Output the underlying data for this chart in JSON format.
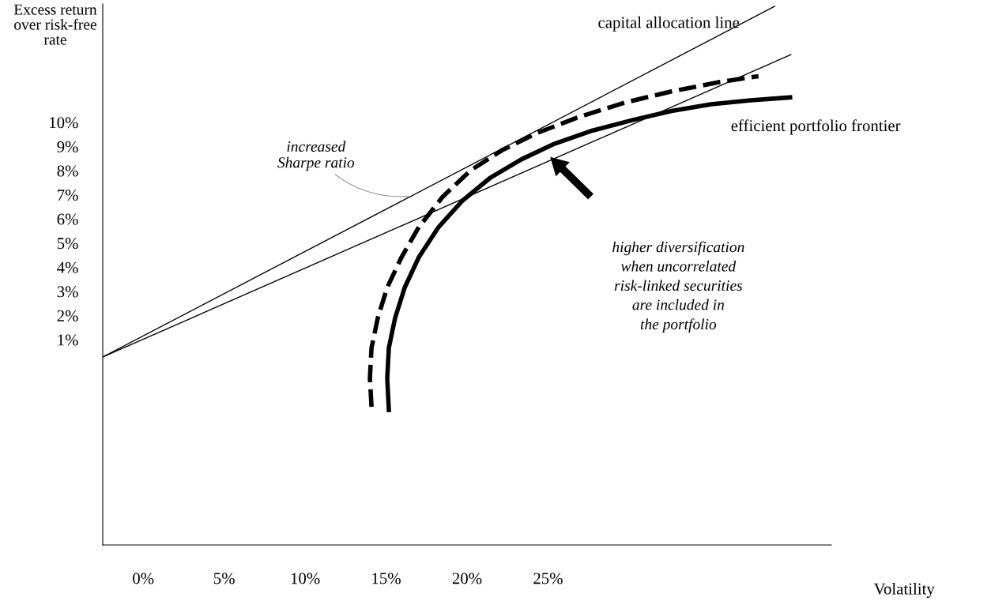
{
  "chart_data": {
    "type": "line",
    "xlabel": "Volatility",
    "ylabel": "Excess return\nover risk-free\nrate",
    "xlim": [
      -2.5,
      42.5
    ],
    "ylim": [
      -7.5,
      14.9
    ],
    "xticks": [
      {
        "value": 0,
        "label": "0%"
      },
      {
        "value": 5,
        "label": "5%"
      },
      {
        "value": 10,
        "label": "10%"
      },
      {
        "value": 15,
        "label": "15%"
      },
      {
        "value": 20,
        "label": "20%"
      },
      {
        "value": 25,
        "label": "25%"
      }
    ],
    "yticks": [
      {
        "value": 1,
        "label": "1%"
      },
      {
        "value": 2,
        "label": "2%"
      },
      {
        "value": 3,
        "label": "3%"
      },
      {
        "value": 4,
        "label": "4%"
      },
      {
        "value": 5,
        "label": "5%"
      },
      {
        "value": 6,
        "label": "6%"
      },
      {
        "value": 7,
        "label": "7%"
      },
      {
        "value": 8,
        "label": "8%"
      },
      {
        "value": 9,
        "label": "9%"
      },
      {
        "value": 10,
        "label": "10%"
      }
    ],
    "grid": false,
    "legend": false,
    "marker": "none",
    "series": [
      {
        "name": "capital allocation line",
        "color": "#000000",
        "line_style": "solid",
        "x": [
          -2.5,
          39.0
        ],
        "values": [
          0.28,
          14.8
        ]
      },
      {
        "color": "#000000",
        "line_style": "solid",
        "x": [
          -2.5,
          40.0
        ],
        "values": [
          0.28,
          12.8
        ]
      },
      {
        "name": "efficient portfolio frontier",
        "color": "#000000",
        "line_style": "solid",
        "x": [
          15.17,
          15.07,
          15.17,
          15.56,
          16.15,
          17.02,
          18.24,
          19.71,
          21.41,
          23.37,
          25.32,
          27.76,
          30.2,
          32.63,
          35.07,
          37.51,
          39.95
        ],
        "values": [
          -1.91,
          -0.59,
          0.66,
          1.91,
          3.16,
          4.41,
          5.66,
          6.75,
          7.69,
          8.47,
          9.09,
          9.66,
          10.09,
          10.47,
          10.75,
          10.91,
          11.03
        ]
      },
      {
        "color": "#000000",
        "line_style": "dashed",
        "x": [
          14.1,
          14.0,
          14.1,
          14.49,
          15.07,
          15.95,
          17.02,
          18.49,
          20.2,
          22.15,
          24.34,
          26.78,
          29.71,
          32.63,
          35.56,
          38.0
        ],
        "values": [
          -1.78,
          -0.59,
          0.66,
          1.91,
          3.16,
          4.41,
          5.66,
          6.91,
          8.0,
          8.84,
          9.56,
          10.19,
          10.81,
          11.28,
          11.66,
          11.91
        ]
      }
    ],
    "annotations": [
      {
        "text": "increased\nSharpe ratio",
        "x": 16.5,
        "y": 6.93
      },
      "higher diversification\nwhen uncorrelated\nrisk-linked securities\nare included in\nthe portfolio"
    ]
  }
}
